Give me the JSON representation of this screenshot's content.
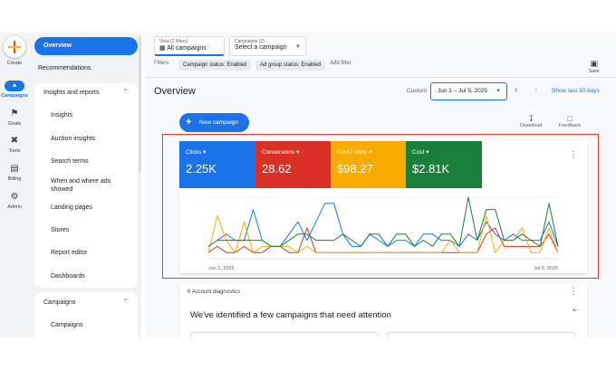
{
  "rail": {
    "create": "Create",
    "items": [
      {
        "label": "Campaigns",
        "icon": "megaphone-icon"
      },
      {
        "label": "Goals",
        "icon": "trophy-icon"
      },
      {
        "label": "Tools",
        "icon": "tools-icon"
      },
      {
        "label": "Billing",
        "icon": "credit-card-icon"
      },
      {
        "label": "Admin",
        "icon": "gear-icon"
      }
    ]
  },
  "sidebar": {
    "overview": "Overview",
    "recommendations": "Recommendations",
    "insights_header": "Insights and reports",
    "insights_items": [
      "Insights",
      "Auction insights",
      "Search terms",
      "When and where ads showed",
      "Landing pages",
      "Stores",
      "Report editor",
      "Dashboards"
    ],
    "campaigns_header": "Campaigns",
    "campaigns_items": [
      "Campaigns"
    ]
  },
  "topbar": {
    "view_label": "View (2 filters)",
    "view_value": "All campaigns",
    "campaigns_label": "Campaigns (2)",
    "campaigns_value": "Select a campaign",
    "filters": "Filters",
    "chip1": "Campaign status: Enabled",
    "chip2": "Ad group status: Enabled",
    "add_filter": "Add filter",
    "save": "Save"
  },
  "header": {
    "title": "Overview",
    "custom": "Custom",
    "date_range": "Jun 1 – Jul 9, 2025",
    "show_last": "Show last 30 days",
    "new_campaign": "New campaign",
    "download": "Download",
    "feedback": "Feedback"
  },
  "metrics": [
    {
      "label": "Clicks",
      "value": "2.25K",
      "color": "#1a73e8"
    },
    {
      "label": "Conversions",
      "value": "28.62",
      "color": "#d93025"
    },
    {
      "label": "Cost / conv.",
      "value": "$98.27",
      "color": "#f9ab00"
    },
    {
      "label": "Cost",
      "value": "$2.81K",
      "color": "#188038"
    }
  ],
  "chart_data": {
    "type": "line",
    "x_start": "Jun 1, 2025",
    "x_end": "Jul 9, 2025",
    "series": [
      {
        "name": "Clicks",
        "color": "#1a73e8",
        "values": [
          2,
          3,
          4,
          3,
          3,
          8,
          3,
          2,
          2,
          4,
          6,
          3,
          6,
          9,
          9,
          4,
          2,
          2,
          4,
          3,
          2,
          3,
          3,
          2,
          4,
          4,
          3,
          3,
          2,
          4,
          3,
          6,
          4,
          3,
          4,
          3,
          3,
          3,
          6,
          2
        ]
      },
      {
        "name": "Conversions",
        "color": "#d93025",
        "values": [
          1,
          2,
          1,
          1,
          2,
          1,
          1,
          2,
          2,
          1,
          1,
          5,
          1,
          1,
          1,
          1,
          1,
          1,
          1,
          1,
          1,
          1,
          1,
          1,
          1,
          1,
          1,
          1,
          1,
          1,
          1,
          4,
          5,
          2,
          2,
          2,
          2,
          2,
          4,
          1
        ]
      },
      {
        "name": "Cost / conv.",
        "color": "#f9ab00",
        "values": [
          1,
          7,
          3,
          1,
          6,
          1,
          2,
          2,
          2,
          2,
          1,
          2,
          1,
          1,
          1,
          1,
          1,
          1,
          1,
          1,
          1,
          1,
          1,
          1,
          1,
          1,
          1,
          3,
          1,
          1,
          1,
          7,
          1,
          3,
          3,
          5,
          1,
          1,
          5,
          1
        ]
      },
      {
        "name": "Cost",
        "color": "#188038",
        "values": [
          2,
          3,
          3,
          3,
          3,
          3,
          3,
          2,
          2,
          3,
          4,
          4,
          3,
          3,
          3,
          4,
          3,
          2,
          4,
          4,
          2,
          4,
          4,
          2,
          3,
          2,
          4,
          4,
          2,
          10,
          3,
          8,
          8,
          3,
          3,
          4,
          3,
          2,
          9,
          2
        ]
      }
    ]
  },
  "diagnostics": {
    "header": "Account diagnostics",
    "message": "We've identified a few campaigns that need attention"
  }
}
